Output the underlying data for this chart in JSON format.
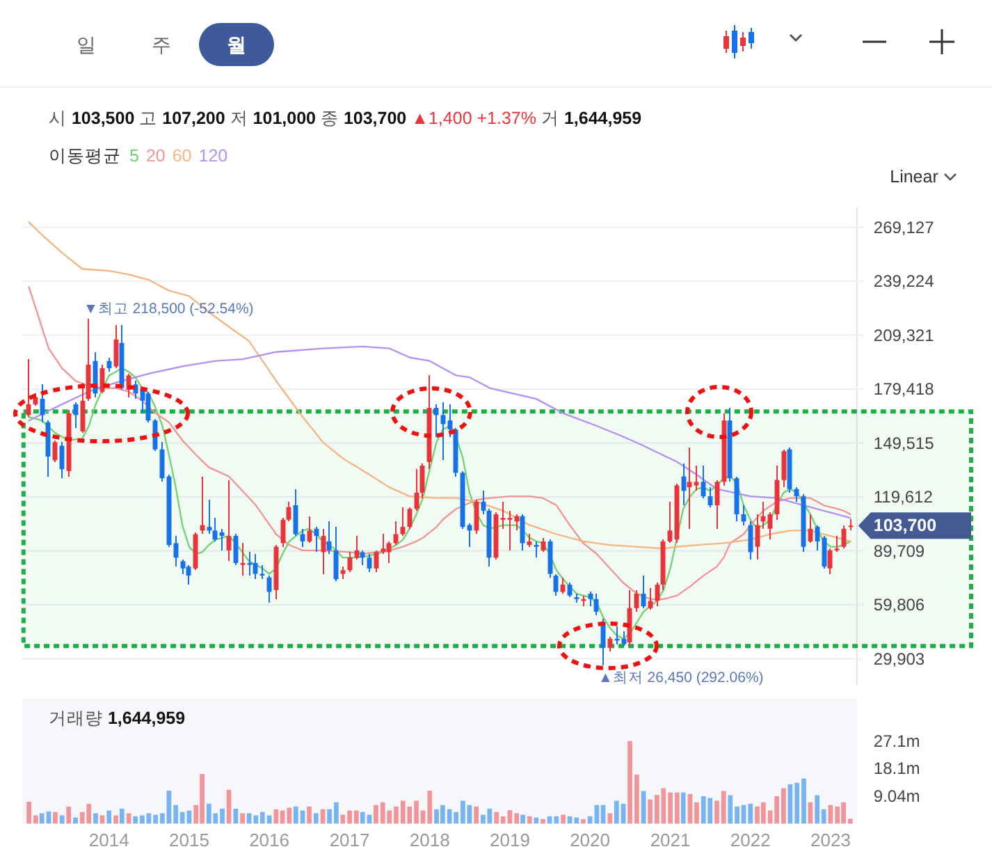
{
  "chart_data": [
    {
      "type": "candlestick",
      "title": "시 103,500 고 107,200 저 101,000 종 103,700 ▲1,400 +1.37% 거 1,644,959",
      "legend_title": "이동평균",
      "legend": "top left",
      "grid": "y",
      "tick_labels": "y",
      "xlim": [
        "2012-12-01",
        "2023-05-01"
      ],
      "ylim": [
        15000,
        280000
      ],
      "yticks": [
        {
          "value": 29903,
          "label": "29,903"
        },
        {
          "value": 59806,
          "label": "59,806"
        },
        {
          "value": 89709,
          "label": "89,709"
        },
        {
          "value": 119612,
          "label": "119,612"
        },
        {
          "value": 149515,
          "label": "149,515"
        },
        {
          "value": 179418,
          "label": "179,418"
        },
        {
          "value": 209321,
          "label": "209,321"
        },
        {
          "value": 239224,
          "label": "239,224"
        },
        {
          "value": 269127,
          "label": "269,127"
        }
      ],
      "x": [
        "2013-01-01",
        "2013-02-01",
        "2013-03-01",
        "2013-04-01",
        "2013-05-01",
        "2013-06-01",
        "2013-07-01",
        "2013-08-01",
        "2013-09-01",
        "2013-10-01",
        "2013-11-01",
        "2013-12-01",
        "2014-01-01",
        "2014-02-01",
        "2014-03-01",
        "2014-04-01",
        "2014-05-01",
        "2014-06-01",
        "2014-07-01",
        "2014-08-01",
        "2014-09-01",
        "2014-10-01",
        "2014-11-01",
        "2014-12-01",
        "2015-01-01",
        "2015-02-01",
        "2015-03-01",
        "2015-04-01",
        "2015-05-01",
        "2015-06-01",
        "2015-07-01",
        "2015-08-01",
        "2015-09-01",
        "2015-10-01",
        "2015-11-01",
        "2015-12-01",
        "2016-01-01",
        "2016-02-01",
        "2016-03-01",
        "2016-04-01",
        "2016-05-01",
        "2016-06-01",
        "2016-07-01",
        "2016-08-01",
        "2016-09-01",
        "2016-10-01",
        "2016-11-01",
        "2016-12-01",
        "2017-01-01",
        "2017-02-01",
        "2017-03-01",
        "2017-04-01",
        "2017-05-01",
        "2017-06-01",
        "2017-07-01",
        "2017-08-01",
        "2017-09-01",
        "2017-10-01",
        "2017-11-01",
        "2017-12-01",
        "2018-01-01",
        "2018-02-01",
        "2018-03-01",
        "2018-04-01",
        "2018-05-01",
        "2018-06-01",
        "2018-07-01",
        "2018-08-01",
        "2018-09-01",
        "2018-10-01",
        "2018-11-01",
        "2018-12-01",
        "2019-01-01",
        "2019-02-01",
        "2019-03-01",
        "2019-04-01",
        "2019-05-01",
        "2019-06-01",
        "2019-07-01",
        "2019-08-01",
        "2019-09-01",
        "2019-10-01",
        "2019-11-01",
        "2019-12-01",
        "2020-01-01",
        "2020-02-01",
        "2020-03-01",
        "2020-04-01",
        "2020-05-01",
        "2020-06-01",
        "2020-07-01",
        "2020-08-01",
        "2020-09-01",
        "2020-10-01",
        "2020-11-01",
        "2020-12-01",
        "2021-01-01",
        "2021-02-01",
        "2021-03-01",
        "2021-04-01",
        "2021-05-01",
        "2021-06-01",
        "2021-07-01",
        "2021-08-01",
        "2021-09-01",
        "2021-10-01",
        "2021-11-01",
        "2021-12-01",
        "2022-01-01",
        "2022-02-01",
        "2022-03-01",
        "2022-04-01",
        "2022-05-01",
        "2022-06-01",
        "2022-07-01",
        "2022-08-01",
        "2022-09-01",
        "2022-10-01",
        "2022-11-01",
        "2022-12-01",
        "2023-01-01",
        "2023-02-01",
        "2023-03-01",
        "2023-04-01"
      ],
      "ohlc": [
        [
          165000,
          196000,
          164000,
          171000
        ],
        [
          171000,
          177000,
          170000,
          175000
        ],
        [
          174000,
          182000,
          161000,
          165000
        ],
        [
          161000,
          162000,
          131000,
          142000
        ],
        [
          140000,
          151000,
          139000,
          150000
        ],
        [
          148000,
          150000,
          130000,
          135000
        ],
        [
          134000,
          168000,
          131000,
          166000
        ],
        [
          171000,
          172000,
          158000,
          165000
        ],
        [
          156000,
          183000,
          155000,
          173000
        ],
        [
          174000,
          218500,
          173000,
          193000
        ],
        [
          195000,
          200000,
          175000,
          177000
        ],
        [
          178000,
          193000,
          177000,
          191000
        ],
        [
          195000,
          197000,
          189000,
          191000
        ],
        [
          192000,
          215000,
          191000,
          207000
        ],
        [
          205000,
          215000,
          179000,
          180000
        ],
        [
          179000,
          188000,
          175000,
          187000
        ],
        [
          182000,
          184000,
          174000,
          177000
        ],
        [
          179000,
          180000,
          166000,
          173000
        ],
        [
          177000,
          178000,
          161000,
          162000
        ],
        [
          162000,
          163000,
          145000,
          146000
        ],
        [
          146000,
          150000,
          128000,
          130000
        ],
        [
          131000,
          132000,
          92000,
          93000
        ],
        [
          94000,
          98000,
          81000,
          86000
        ],
        [
          84000,
          85000,
          77000,
          80000
        ],
        [
          81000,
          82000,
          71000,
          76000
        ],
        [
          80000,
          100000,
          79000,
          99000
        ],
        [
          101000,
          131000,
          99000,
          104000
        ],
        [
          103000,
          118000,
          99000,
          101000
        ],
        [
          101000,
          108000,
          95000,
          96000
        ],
        [
          100000,
          102000,
          90000,
          98000
        ],
        [
          90000,
          129000,
          84000,
          98000
        ],
        [
          98000,
          99000,
          82000,
          83000
        ],
        [
          82000,
          94000,
          76000,
          83000
        ],
        [
          83000,
          89000,
          76000,
          82000
        ],
        [
          83000,
          88000,
          74000,
          77000
        ],
        [
          77000,
          82000,
          74000,
          76000
        ],
        [
          75000,
          76000,
          61000,
          67000
        ],
        [
          68000,
          93000,
          63000,
          92000
        ],
        [
          94000,
          108000,
          92000,
          107000
        ],
        [
          107000,
          117000,
          106000,
          114000
        ],
        [
          115000,
          124000,
          98000,
          99000
        ],
        [
          99000,
          102000,
          92000,
          95000
        ],
        [
          95000,
          109000,
          94000,
          101000
        ],
        [
          102000,
          103000,
          89000,
          98000
        ],
        [
          89000,
          102000,
          77000,
          98000
        ],
        [
          95000,
          106000,
          88000,
          90000
        ],
        [
          90000,
          103000,
          73000,
          74000
        ],
        [
          77000,
          81000,
          74000,
          79000
        ],
        [
          79000,
          89000,
          78000,
          86000
        ],
        [
          86000,
          98000,
          85000,
          90000
        ],
        [
          89000,
          90000,
          82000,
          86000
        ],
        [
          86000,
          88000,
          78000,
          80000
        ],
        [
          80000,
          90000,
          78000,
          89000
        ],
        [
          89000,
          99000,
          88000,
          91000
        ],
        [
          89000,
          95000,
          83000,
          94000
        ],
        [
          94000,
          106000,
          93000,
          99000
        ],
        [
          99000,
          114000,
          98000,
          103000
        ],
        [
          103000,
          114000,
          102000,
          113000
        ],
        [
          113000,
          135000,
          112000,
          122000
        ],
        [
          122000,
          138000,
          119000,
          137000
        ],
        [
          139000,
          187000,
          135000,
          169000
        ],
        [
          169000,
          171000,
          153000,
          165000
        ],
        [
          165000,
          172000,
          140000,
          160000
        ],
        [
          162000,
          171000,
          153000,
          157000
        ],
        [
          157000,
          158000,
          131000,
          133000
        ],
        [
          133000,
          134000,
          102000,
          103000
        ],
        [
          104000,
          105000,
          92000,
          101000
        ],
        [
          101000,
          118000,
          99000,
          117000
        ],
        [
          117000,
          123000,
          110000,
          112000
        ],
        [
          112000,
          113000,
          81000,
          86000
        ],
        [
          86000,
          111000,
          85000,
          110000
        ],
        [
          107000,
          117000,
          102000,
          108000
        ],
        [
          107000,
          112000,
          90000,
          108000
        ],
        [
          106000,
          110000,
          101000,
          109000
        ],
        [
          109000,
          110000,
          90000,
          94000
        ],
        [
          93000,
          99000,
          92000,
          95000
        ],
        [
          93000,
          95000,
          86000,
          92000
        ],
        [
          90000,
          97000,
          89000,
          95000
        ],
        [
          95000,
          96000,
          75000,
          77000
        ],
        [
          76000,
          77000,
          65000,
          67000
        ],
        [
          67000,
          75000,
          66000,
          71000
        ],
        [
          71000,
          72000,
          64000,
          65000
        ],
        [
          64000,
          66000,
          61000,
          63000
        ],
        [
          62000,
          65000,
          59000,
          63000
        ],
        [
          66000,
          67000,
          59000,
          63000
        ],
        [
          63000,
          66000,
          54000,
          56000
        ],
        [
          50000,
          52000,
          26450,
          36000
        ],
        [
          36000,
          42000,
          34000,
          41000
        ],
        [
          41000,
          48000,
          38000,
          40000
        ],
        [
          41000,
          45000,
          37000,
          38000
        ],
        [
          39000,
          68000,
          37000,
          58000
        ],
        [
          58000,
          68000,
          56000,
          66000
        ],
        [
          66000,
          76000,
          58000,
          59000
        ],
        [
          58000,
          69000,
          57000,
          62000
        ],
        [
          62000,
          72000,
          59000,
          71000
        ],
        [
          71000,
          96000,
          68000,
          95000
        ],
        [
          95000,
          117000,
          94000,
          101000
        ],
        [
          96000,
          127000,
          94000,
          126000
        ],
        [
          131000,
          138000,
          115000,
          123000
        ],
        [
          125000,
          147000,
          102000,
          128000
        ],
        [
          126000,
          137000,
          123000,
          128000
        ],
        [
          128000,
          137000,
          119000,
          120000
        ],
        [
          120000,
          125000,
          114000,
          115000
        ],
        [
          115000,
          129000,
          102000,
          128000
        ],
        [
          128000,
          166000,
          126000,
          162000
        ],
        [
          162000,
          169000,
          128000,
          130000
        ],
        [
          130000,
          131000,
          106000,
          110000
        ],
        [
          110000,
          115000,
          104000,
          106000
        ],
        [
          104000,
          106000,
          85000,
          89000
        ],
        [
          92000,
          110000,
          85000,
          104000
        ],
        [
          106000,
          117000,
          102000,
          109000
        ],
        [
          102000,
          111000,
          96000,
          110000
        ],
        [
          110000,
          137000,
          107000,
          129000
        ],
        [
          129000,
          146000,
          125000,
          145000
        ],
        [
          146000,
          147000,
          122000,
          124000
        ],
        [
          124000,
          125000,
          117000,
          120000
        ],
        [
          120000,
          121000,
          89000,
          92000
        ],
        [
          95000,
          110000,
          94000,
          102000
        ],
        [
          103000,
          104000,
          90000,
          95000
        ],
        [
          97000,
          98000,
          80000,
          81000
        ],
        [
          80000,
          91000,
          77000,
          90000
        ],
        [
          90000,
          98000,
          89000,
          91000
        ],
        [
          92000,
          104000,
          91000,
          102000
        ],
        [
          103500,
          107200,
          101000,
          103700
        ]
      ],
      "colors": [
        "#e8343b",
        "#e8343b",
        "#1672e8",
        "#1672e8",
        "#e8343b",
        "#1672e8",
        "#e8343b",
        "#1672e8",
        "#e8343b",
        "#e8343b",
        "#1672e8",
        "#e8343b",
        "#1672e8",
        "#e8343b",
        "#1672e8",
        "#e8343b",
        "#1672e8",
        "#1672e8",
        "#1672e8",
        "#1672e8",
        "#1672e8",
        "#1672e8",
        "#1672e8",
        "#1672e8",
        "#1672e8",
        "#e8343b",
        "#e8343b",
        "#1672e8",
        "#1672e8",
        "#1672e8",
        "#e8343b",
        "#1672e8",
        "#e8343b",
        "#1672e8",
        "#1672e8",
        "#1672e8",
        "#1672e8",
        "#e8343b",
        "#e8343b",
        "#e8343b",
        "#1672e8",
        "#1672e8",
        "#e8343b",
        "#1672e8",
        "#e8343b",
        "#1672e8",
        "#1672e8",
        "#e8343b",
        "#e8343b",
        "#e8343b",
        "#1672e8",
        "#1672e8",
        "#e8343b",
        "#e8343b",
        "#e8343b",
        "#e8343b",
        "#e8343b",
        "#e8343b",
        "#e8343b",
        "#e8343b",
        "#e8343b",
        "#1672e8",
        "#1672e8",
        "#1672e8",
        "#1672e8",
        "#1672e8",
        "#1672e8",
        "#e8343b",
        "#1672e8",
        "#1672e8",
        "#e8343b",
        "#e8343b",
        "#e8343b",
        "#e8343b",
        "#1672e8",
        "#e8343b",
        "#1672e8",
        "#e8343b",
        "#1672e8",
        "#1672e8",
        "#e8343b",
        "#1672e8",
        "#1672e8",
        "#e8343b",
        "#1672e8",
        "#1672e8",
        "#1672e8",
        "#e8343b",
        "#1672e8",
        "#1672e8",
        "#e8343b",
        "#e8343b",
        "#1672e8",
        "#e8343b",
        "#e8343b",
        "#e8343b",
        "#e8343b",
        "#e8343b",
        "#1672e8",
        "#e8343b",
        "#e8343b",
        "#1672e8",
        "#1672e8",
        "#e8343b",
        "#e8343b",
        "#1672e8",
        "#1672e8",
        "#1672e8",
        "#1672e8",
        "#e8343b",
        "#e8343b",
        "#e8343b",
        "#e8343b",
        "#e8343b",
        "#1672e8",
        "#1672e8",
        "#1672e8",
        "#e8343b",
        "#1672e8",
        "#1672e8",
        "#e8343b",
        "#e8343b",
        "#e8343b",
        "#e8343b"
      ],
      "series": [
        {
          "name": "5",
          "type": "line",
          "color": "#6fd36f",
          "x": [
            "2013-01-01",
            "2013-03-01",
            "2013-05-01",
            "2013-07-01",
            "2013-09-01",
            "2013-10-01",
            "2013-11-01",
            "2013-12-01",
            "2014-01-01",
            "2014-02-01",
            "2014-03-01",
            "2014-04-01",
            "2014-05-01",
            "2014-06-01",
            "2014-07-01",
            "2014-08-01",
            "2014-09-01",
            "2014-10-01",
            "2014-11-01",
            "2014-12-01",
            "2015-01-01",
            "2015-02-01",
            "2015-03-01",
            "2015-04-01",
            "2015-05-01",
            "2015-07-01",
            "2015-08-01",
            "2015-10-01",
            "2015-12-01",
            "2016-01-01",
            "2016-02-01",
            "2016-03-01",
            "2016-04-01",
            "2016-06-01",
            "2016-07-01",
            "2016-08-01",
            "2016-09-01",
            "2016-10-01",
            "2016-11-01",
            "2016-12-01",
            "2017-02-01",
            "2017-04-01",
            "2017-05-01",
            "2017-06-01",
            "2017-08-01",
            "2017-09-01",
            "2017-10-01",
            "2017-11-01",
            "2017-12-01",
            "2018-01-01",
            "2018-02-01",
            "2018-03-01",
            "2018-04-01",
            "2018-05-01",
            "2018-06-01",
            "2018-07-01",
            "2018-08-01",
            "2018-09-01",
            "2018-10-01",
            "2018-11-01",
            "2018-12-01",
            "2019-01-01",
            "2019-02-01",
            "2019-03-01",
            "2019-04-01",
            "2019-05-01",
            "2019-06-01",
            "2019-07-01",
            "2019-08-01",
            "2019-09-01",
            "2019-10-01",
            "2019-11-01",
            "2019-12-01",
            "2020-01-01",
            "2020-02-01",
            "2020-03-01",
            "2020-04-01",
            "2020-05-01",
            "2020-06-01",
            "2020-07-01",
            "2020-08-01",
            "2020-09-01",
            "2020-10-01",
            "2020-11-01",
            "2020-12-01",
            "2021-01-01",
            "2021-03-01",
            "2021-04-01",
            "2021-05-01",
            "2021-06-01",
            "2021-07-01",
            "2021-08-01",
            "2021-09-01",
            "2021-10-01",
            "2021-11-01",
            "2021-12-01",
            "2022-01-01",
            "2022-02-01",
            "2022-03-01",
            "2022-04-01",
            "2022-05-01",
            "2022-06-01",
            "2022-07-01",
            "2022-08-01",
            "2022-09-01",
            "2022-10-01",
            "2022-11-01",
            "2022-12-01",
            "2023-01-01",
            "2023-02-01",
            "2023-03-01",
            "2023-04-01"
          ],
          "values": [
            164000,
            162000,
            155000,
            151000,
            152000,
            159000,
            171000,
            179000,
            187000,
            189000,
            191000,
            189000,
            186000,
            180000,
            177000,
            169000,
            159000,
            143000,
            125000,
            104000,
            92000,
            88000,
            89000,
            93000,
            96000,
            98000,
            94000,
            84000,
            80000,
            77000,
            80000,
            88000,
            95000,
            101000,
            102000,
            99000,
            95000,
            93000,
            90000,
            86000,
            86000,
            87000,
            88000,
            89000,
            93000,
            96000,
            102000,
            110000,
            119000,
            135000,
            150000,
            157000,
            159000,
            153000,
            141000,
            122000,
            111000,
            104000,
            102000,
            103000,
            104000,
            104000,
            104000,
            101000,
            97000,
            95000,
            94000,
            88000,
            79000,
            74000,
            70000,
            66000,
            65000,
            64000,
            61000,
            53000,
            47000,
            43000,
            41000,
            44000,
            50000,
            56000,
            59000,
            62000,
            68000,
            80000,
            113000,
            120000,
            124000,
            125000,
            123000,
            126000,
            130000,
            131000,
            127000,
            115000,
            107000,
            102000,
            104000,
            107000,
            115000,
            122000,
            124000,
            122000,
            116000,
            110000,
            102000,
            95000,
            92000,
            92000,
            93000,
            95000
          ]
        },
        {
          "name": "20",
          "type": "line",
          "color": "#f39494",
          "x": [
            "2013-01-01",
            "2013-04-01",
            "2013-06-01",
            "2013-08-01",
            "2013-10-01",
            "2013-12-01",
            "2014-02-01",
            "2014-04-01",
            "2014-06-01",
            "2014-08-01",
            "2014-10-01",
            "2014-12-01",
            "2015-02-01",
            "2015-04-01",
            "2015-07-01",
            "2015-11-01",
            "2016-02-01",
            "2016-04-01",
            "2016-06-01",
            "2016-09-01",
            "2017-01-01",
            "2017-03-01",
            "2017-07-01",
            "2017-09-01",
            "2017-11-01",
            "2017-12-01",
            "2018-02-01",
            "2018-03-01",
            "2018-05-01",
            "2018-08-01",
            "2018-10-01",
            "2019-01-01",
            "2019-04-01",
            "2019-06-01",
            "2019-08-01",
            "2019-10-01",
            "2019-12-01",
            "2020-02-01",
            "2020-04-01",
            "2020-06-01",
            "2020-08-01",
            "2020-10-01",
            "2020-12-01",
            "2021-02-01",
            "2021-04-01",
            "2021-06-01",
            "2021-08-01",
            "2021-09-01",
            "2021-10-01",
            "2021-12-01",
            "2022-01-01",
            "2022-03-01",
            "2022-05-01",
            "2022-07-01",
            "2022-08-01",
            "2022-10-01",
            "2022-11-01",
            "2022-12-01",
            "2023-02-01",
            "2023-03-01",
            "2023-04-01"
          ],
          "values": [
            236000,
            202000,
            191000,
            184000,
            181000,
            180000,
            180000,
            178000,
            173000,
            166000,
            161000,
            151000,
            143000,
            136000,
            131000,
            115000,
            99000,
            93000,
            90000,
            90000,
            89000,
            88000,
            90000,
            92000,
            95000,
            97000,
            103000,
            107000,
            113000,
            118000,
            119000,
            120000,
            120000,
            119000,
            115000,
            104000,
            94000,
            88000,
            80000,
            72000,
            66000,
            63000,
            63000,
            65000,
            70000,
            76000,
            81000,
            86000,
            94000,
            99000,
            104000,
            112000,
            117000,
            119000,
            119000,
            119000,
            117000,
            115000,
            113000,
            112000,
            110000
          ]
        },
        {
          "name": "60",
          "type": "line",
          "color": "#f6b47e",
          "x": [
            "2013-01-01",
            "2013-03-01",
            "2013-06-01",
            "2013-09-01",
            "2014-01-01",
            "2014-04-01",
            "2014-07-01",
            "2014-10-01",
            "2015-01-01",
            "2015-04-01",
            "2015-07-01",
            "2015-10-01",
            "2016-02-01",
            "2016-06-01",
            "2016-09-01",
            "2016-12-01",
            "2017-04-01",
            "2017-07-01",
            "2017-10-01",
            "2018-02-01",
            "2018-05-01",
            "2018-08-01",
            "2018-12-01",
            "2019-04-01",
            "2019-08-01",
            "2019-12-01",
            "2020-04-01",
            "2020-08-01",
            "2020-12-01",
            "2021-02-01",
            "2021-05-01",
            "2021-09-01",
            "2022-01-01",
            "2022-04-01",
            "2022-07-01",
            "2022-10-01",
            "2023-01-01",
            "2023-04-01"
          ],
          "values": [
            272000,
            265000,
            255000,
            246000,
            245000,
            243000,
            240000,
            234000,
            231000,
            222000,
            214000,
            206000,
            184000,
            164000,
            150000,
            141000,
            132000,
            125000,
            120000,
            119000,
            119000,
            117000,
            112000,
            104000,
            99000,
            95000,
            93000,
            92000,
            91000,
            92000,
            93000,
            94000,
            96000,
            99000,
            101000,
            101000,
            98000,
            95000
          ]
        },
        {
          "name": "120",
          "type": "line",
          "color": "#b291f2",
          "x": [
            "2013-01-01",
            "2013-06-01",
            "2013-10-01",
            "2014-02-01",
            "2014-07-01",
            "2014-12-01",
            "2015-05-01",
            "2015-09-01",
            "2016-02-01",
            "2016-09-01",
            "2017-03-01",
            "2017-07-01",
            "2017-10-01",
            "2018-01-01",
            "2018-03-01",
            "2018-05-01",
            "2018-07-01",
            "2018-10-01",
            "2019-05-01",
            "2019-09-01",
            "2020-02-01",
            "2020-06-01",
            "2020-09-01",
            "2021-02-01",
            "2021-05-01",
            "2021-08-01",
            "2022-01-01",
            "2022-05-01",
            "2022-09-01",
            "2022-12-01",
            "2023-04-01"
          ],
          "values": [
            162000,
            171000,
            178000,
            183000,
            188000,
            192000,
            195000,
            196000,
            200000,
            202000,
            203000,
            202000,
            197000,
            195000,
            191000,
            187000,
            186000,
            180000,
            174000,
            166000,
            159000,
            153000,
            148000,
            139000,
            132000,
            124000,
            120000,
            119000,
            115000,
            112000,
            108000
          ]
        }
      ],
      "bands": [
        {
          "axis": "y",
          "from": 37000,
          "to": 167000,
          "color": "#1fae45"
        }
      ],
      "annotations": [
        {
          "text": "▼최고 218,500 (-52.54%)",
          "x": "2013-10-01",
          "y": 218500
        },
        {
          "text": "▲최저 26,450 (292.06%)",
          "x": "2020-03-01",
          "y": 26450
        },
        {
          "text": "103,700",
          "x": "2023-04-01",
          "y": 103700
        },
        "일",
        "주",
        "월",
        "Linear"
      ]
    },
    {
      "type": "bar",
      "title": "거래량 1,644,959",
      "xlim": [
        "2012-12-01",
        "2023-05-01"
      ],
      "ylim": [
        0,
        41
      ],
      "xticks": [
        {
          "value": "2014-01-01",
          "label": "2014"
        },
        {
          "value": "2015-01-01",
          "label": "2015"
        },
        {
          "value": "2016-01-01",
          "label": "2016"
        },
        {
          "value": "2017-01-01",
          "label": "2017"
        },
        {
          "value": "2018-01-01",
          "label": "2018"
        },
        {
          "value": "2019-01-01",
          "label": "2019"
        },
        {
          "value": "2020-01-01",
          "label": "2020"
        },
        {
          "value": "2021-01-01",
          "label": "2021"
        },
        {
          "value": "2022-01-01",
          "label": "2022"
        },
        {
          "value": "2023-01-01",
          "label": "2023"
        }
      ],
      "yticks": [
        {
          "value": 9.04,
          "label": "9.04m"
        },
        {
          "value": 18.1,
          "label": "18.1m"
        },
        {
          "value": 27.1,
          "label": "27.1m"
        }
      ],
      "x": [
        "2013-01-01",
        "2013-02-01",
        "2013-03-01",
        "2013-04-01",
        "2013-05-01",
        "2013-06-01",
        "2013-07-01",
        "2013-08-01",
        "2013-09-01",
        "2013-10-01",
        "2013-11-01",
        "2013-12-01",
        "2014-01-01",
        "2014-02-01",
        "2014-03-01",
        "2014-04-01",
        "2014-05-01",
        "2014-06-01",
        "2014-07-01",
        "2014-08-01",
        "2014-09-01",
        "2014-10-01",
        "2014-11-01",
        "2014-12-01",
        "2015-01-01",
        "2015-02-01",
        "2015-03-01",
        "2015-04-01",
        "2015-05-01",
        "2015-06-01",
        "2015-07-01",
        "2015-08-01",
        "2015-09-01",
        "2015-10-01",
        "2015-11-01",
        "2015-12-01",
        "2016-01-01",
        "2016-02-01",
        "2016-03-01",
        "2016-04-01",
        "2016-05-01",
        "2016-06-01",
        "2016-07-01",
        "2016-08-01",
        "2016-09-01",
        "2016-10-01",
        "2016-11-01",
        "2016-12-01",
        "2017-01-01",
        "2017-02-01",
        "2017-03-01",
        "2017-04-01",
        "2017-05-01",
        "2017-06-01",
        "2017-07-01",
        "2017-08-01",
        "2017-09-01",
        "2017-10-01",
        "2017-11-01",
        "2017-12-01",
        "2018-01-01",
        "2018-02-01",
        "2018-03-01",
        "2018-04-01",
        "2018-05-01",
        "2018-06-01",
        "2018-07-01",
        "2018-08-01",
        "2018-09-01",
        "2018-10-01",
        "2018-11-01",
        "2018-12-01",
        "2019-01-01",
        "2019-02-01",
        "2019-03-01",
        "2019-04-01",
        "2019-05-01",
        "2019-06-01",
        "2019-07-01",
        "2019-08-01",
        "2019-09-01",
        "2019-10-01",
        "2019-11-01",
        "2019-12-01",
        "2020-01-01",
        "2020-02-01",
        "2020-03-01",
        "2020-04-01",
        "2020-05-01",
        "2020-06-01",
        "2020-07-01",
        "2020-08-01",
        "2020-09-01",
        "2020-10-01",
        "2020-11-01",
        "2020-12-01",
        "2021-01-01",
        "2021-02-01",
        "2021-03-01",
        "2021-04-01",
        "2021-05-01",
        "2021-06-01",
        "2021-07-01",
        "2021-08-01",
        "2021-09-01",
        "2021-10-01",
        "2021-11-01",
        "2021-12-01",
        "2022-01-01",
        "2022-02-01",
        "2022-03-01",
        "2022-04-01",
        "2022-05-01",
        "2022-06-01",
        "2022-07-01",
        "2022-08-01",
        "2022-09-01",
        "2022-10-01",
        "2022-11-01",
        "2022-12-01",
        "2023-01-01",
        "2023-02-01",
        "2023-03-01",
        "2023-04-01"
      ],
      "values": [
        7.2,
        2.7,
        3.4,
        4.0,
        3.8,
        2.7,
        5.6,
        2.0,
        3.8,
        6.5,
        3.4,
        2.7,
        4.3,
        2.7,
        4.9,
        3.4,
        2.4,
        2.7,
        3.4,
        2.9,
        3.4,
        10.8,
        6.1,
        3.8,
        4.3,
        6.1,
        16.3,
        6.5,
        3.4,
        4.9,
        11.1,
        4.9,
        3.4,
        3.4,
        2.7,
        3.8,
        2.7,
        4.7,
        4.3,
        5.2,
        5.6,
        4.3,
        5.6,
        3.4,
        4.7,
        4.7,
        7.0,
        2.9,
        4.3,
        4.3,
        3.8,
        2.9,
        6.1,
        7.0,
        4.3,
        5.6,
        7.5,
        5.6,
        7.5,
        4.3,
        10.8,
        4.7,
        6.1,
        4.7,
        3.8,
        7.5,
        6.1,
        5.6,
        2.9,
        4.9,
        3.8,
        2.4,
        4.4,
        3.4,
        2.9,
        2.4,
        2.0,
        1.5,
        2.4,
        2.4,
        2.9,
        2.4,
        2.0,
        1.5,
        2.4,
        6.1,
        6.1,
        3.4,
        7.5,
        6.5,
        27.1,
        16.1,
        10.7,
        7.9,
        9.4,
        11.6,
        10.2,
        10.2,
        10.2,
        9.7,
        7.0,
        9.0,
        8.4,
        7.5,
        10.7,
        9.3,
        5.6,
        6.1,
        6.5,
        5.6,
        7.0,
        4.3,
        9.0,
        11.6,
        12.9,
        13.4,
        14.8,
        7.0,
        9.3,
        4.7,
        6.1,
        5.6,
        7.0,
        1.6
      ],
      "colors": [
        "#f2959a",
        "#f2959a",
        "#78b3f2",
        "#78b3f2",
        "#f2959a",
        "#78b3f2",
        "#f2959a",
        "#78b3f2",
        "#f2959a",
        "#f2959a",
        "#78b3f2",
        "#f2959a",
        "#78b3f2",
        "#f2959a",
        "#78b3f2",
        "#f2959a",
        "#78b3f2",
        "#78b3f2",
        "#78b3f2",
        "#78b3f2",
        "#78b3f2",
        "#78b3f2",
        "#78b3f2",
        "#78b3f2",
        "#78b3f2",
        "#f2959a",
        "#f2959a",
        "#78b3f2",
        "#78b3f2",
        "#78b3f2",
        "#f2959a",
        "#78b3f2",
        "#f2959a",
        "#78b3f2",
        "#78b3f2",
        "#78b3f2",
        "#78b3f2",
        "#f2959a",
        "#f2959a",
        "#f2959a",
        "#78b3f2",
        "#78b3f2",
        "#f2959a",
        "#78b3f2",
        "#f2959a",
        "#78b3f2",
        "#78b3f2",
        "#f2959a",
        "#f2959a",
        "#f2959a",
        "#78b3f2",
        "#78b3f2",
        "#f2959a",
        "#f2959a",
        "#f2959a",
        "#f2959a",
        "#f2959a",
        "#f2959a",
        "#f2959a",
        "#f2959a",
        "#f2959a",
        "#78b3f2",
        "#78b3f2",
        "#78b3f2",
        "#78b3f2",
        "#78b3f2",
        "#78b3f2",
        "#f2959a",
        "#78b3f2",
        "#78b3f2",
        "#f2959a",
        "#f2959a",
        "#f2959a",
        "#f2959a",
        "#78b3f2",
        "#f2959a",
        "#78b3f2",
        "#f2959a",
        "#78b3f2",
        "#78b3f2",
        "#f2959a",
        "#78b3f2",
        "#78b3f2",
        "#f2959a",
        "#78b3f2",
        "#78b3f2",
        "#78b3f2",
        "#f2959a",
        "#78b3f2",
        "#78b3f2",
        "#f2959a",
        "#f2959a",
        "#78b3f2",
        "#f2959a",
        "#f2959a",
        "#f2959a",
        "#f2959a",
        "#f2959a",
        "#78b3f2",
        "#f2959a",
        "#f2959a",
        "#78b3f2",
        "#78b3f2",
        "#f2959a",
        "#f2959a",
        "#78b3f2",
        "#78b3f2",
        "#78b3f2",
        "#78b3f2",
        "#f2959a",
        "#f2959a",
        "#f2959a",
        "#f2959a",
        "#f2959a",
        "#78b3f2",
        "#78b3f2",
        "#78b3f2",
        "#f2959a",
        "#78b3f2",
        "#78b3f2",
        "#f2959a",
        "#f2959a",
        "#f2959a",
        "#f2959a"
      ]
    }
  ]
}
